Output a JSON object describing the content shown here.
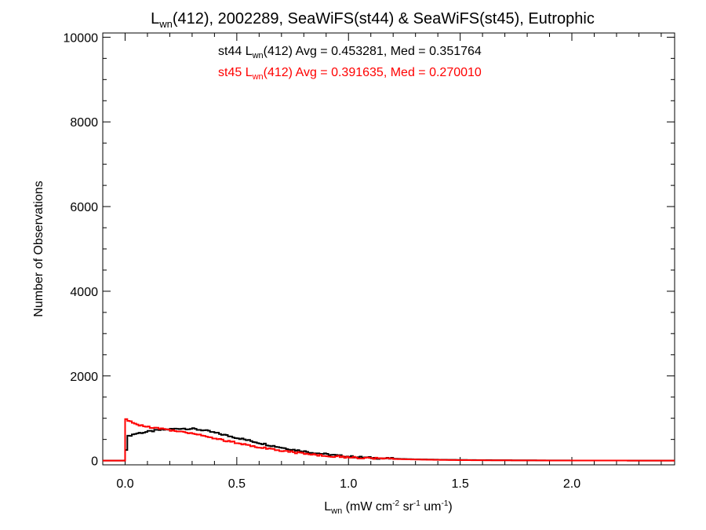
{
  "chart_data": {
    "type": "line",
    "title": {
      "main": "L",
      "sub": "wn",
      "rest": "(412), 2002289, SeaWiFS(st44) & SeaWiFS(st45), Eutrophic"
    },
    "xlabel": {
      "main": "L",
      "sub": "wn",
      "p1": " (mW cm",
      "s1": "-2",
      "p2": " sr",
      "s2": "-1",
      "p3": " um",
      "s3": "-1",
      "p4": ")"
    },
    "ylabel": "Number of Observations",
    "xlim": [
      -0.1,
      2.46
    ],
    "ylim": [
      -100,
      10100
    ],
    "x_ticks": [
      0.0,
      0.5,
      1.0,
      1.5,
      2.0
    ],
    "x_tick_labels": [
      "0.0",
      "0.5",
      "1.0",
      "1.5",
      "2.0"
    ],
    "y_ticks": [
      0,
      2000,
      4000,
      6000,
      8000,
      10000
    ],
    "y_tick_labels": [
      "0",
      "2000",
      "4000",
      "6000",
      "8000",
      "10000"
    ],
    "grid": false,
    "annotations": [
      {
        "pre": "st44 L",
        "sub": "wn",
        "post": "(412) Avg = 0.453281, Med = 0.351764",
        "color": "#000000"
      },
      {
        "pre": "st45 L",
        "sub": "wn",
        "post": "(412) Avg = 0.391635, Med = 0.270010",
        "color": "#ff0000"
      }
    ],
    "series": [
      {
        "color": "#000000",
        "x": [
          0.0,
          0.005,
          0.01,
          0.05,
          0.1,
          0.15,
          0.2,
          0.25,
          0.3,
          0.35,
          0.4,
          0.45,
          0.5,
          0.55,
          0.6,
          0.65,
          0.7,
          0.75,
          0.8,
          0.85,
          0.9,
          0.95,
          1.0,
          1.1,
          1.2,
          1.3,
          1.4,
          1.5,
          1.6,
          1.8,
          2.0,
          2.2,
          2.46
        ],
        "y": [
          0,
          250,
          580,
          640,
          680,
          720,
          740,
          760,
          750,
          720,
          660,
          600,
          540,
          480,
          420,
          360,
          310,
          260,
          220,
          180,
          150,
          120,
          95,
          65,
          45,
          30,
          22,
          16,
          11,
          6,
          3,
          1,
          0
        ]
      },
      {
        "color": "#ff0000",
        "x": [
          0.0,
          0.005,
          0.01,
          0.03,
          0.05,
          0.1,
          0.15,
          0.2,
          0.25,
          0.3,
          0.35,
          0.4,
          0.45,
          0.5,
          0.55,
          0.6,
          0.65,
          0.7,
          0.75,
          0.8,
          0.85,
          0.9,
          0.95,
          1.0,
          1.1,
          1.2,
          1.3,
          1.4,
          1.5,
          1.6,
          1.8,
          2.0,
          2.2,
          2.46
        ],
        "y": [
          0,
          980,
          950,
          900,
          860,
          800,
          760,
          720,
          690,
          650,
          590,
          530,
          470,
          420,
          370,
          320,
          280,
          240,
          200,
          170,
          140,
          115,
          95,
          80,
          55,
          38,
          26,
          18,
          12,
          8,
          4,
          2,
          1,
          0
        ]
      }
    ]
  }
}
